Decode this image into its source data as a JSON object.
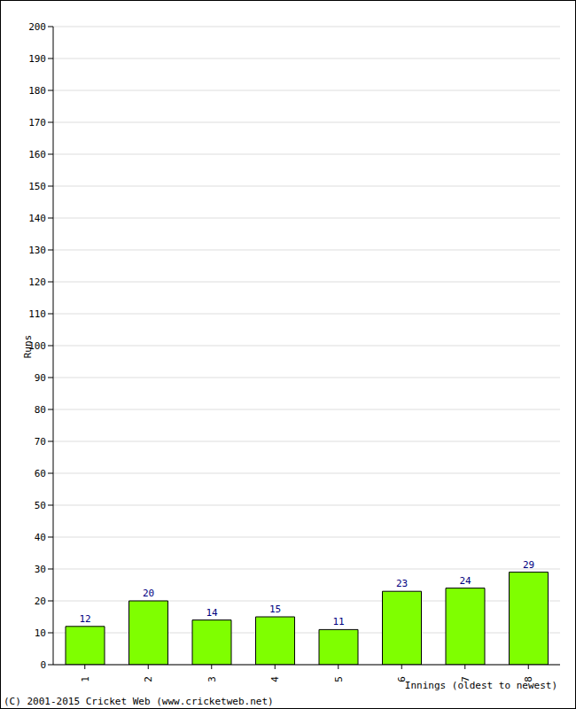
{
  "chart_data": {
    "type": "bar",
    "categories": [
      "1",
      "2",
      "3",
      "4",
      "5",
      "6",
      "7",
      "8"
    ],
    "values": [
      12,
      20,
      14,
      15,
      11,
      23,
      24,
      29
    ],
    "color": "#7fff00",
    "ylim": [
      0,
      200
    ],
    "yticks": [
      0,
      10,
      20,
      30,
      40,
      50,
      60,
      70,
      80,
      90,
      100,
      110,
      120,
      130,
      140,
      150,
      160,
      170,
      180,
      190,
      200
    ],
    "grid": true,
    "data_labels": true,
    "y_label": "Runs",
    "x_label": "Innings (oldest to newest)",
    "annotations": [
      "(C) 2001-2015 Cricket Web (www.cricketweb.net)"
    ]
  }
}
